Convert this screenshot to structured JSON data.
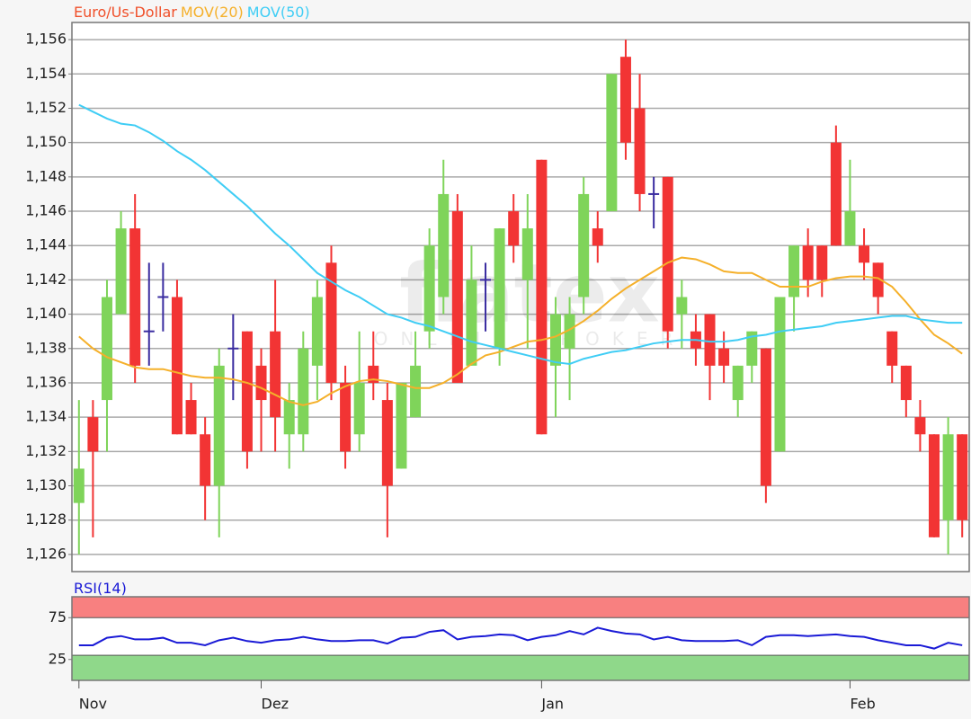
{
  "chart_data": [
    {
      "type": "candlestick",
      "series": [
        {
          "name": "Euro/Us-Dollar",
          "color": "#f0502a",
          "up_color": "#7fd45a",
          "down_color": "#f23434",
          "doji_color": "#3a2ca0",
          "open": [
            1.129,
            1.134,
            1.135,
            1.14,
            1.145,
            1.139,
            1.141,
            1.141,
            1.135,
            1.133,
            1.13,
            1.138,
            1.139,
            1.137,
            1.139,
            1.133,
            1.133,
            1.137,
            1.143,
            1.136,
            1.133,
            1.137,
            1.135,
            1.131,
            1.134,
            1.139,
            1.141,
            1.146,
            1.137,
            1.142,
            1.138,
            1.146,
            1.142,
            1.149,
            1.137,
            1.138,
            1.141,
            1.145,
            1.146,
            1.155,
            1.152,
            1.147,
            1.148,
            1.14,
            1.139,
            1.14,
            1.138,
            1.135,
            1.137,
            1.138,
            1.132,
            1.141,
            1.144,
            1.144,
            1.15,
            1.144,
            1.144,
            1.143,
            1.139,
            1.137,
            1.134,
            1.133,
            1.128,
            1.133
          ],
          "high": [
            1.135,
            1.135,
            1.142,
            1.146,
            1.147,
            1.143,
            1.143,
            1.142,
            1.136,
            1.134,
            1.138,
            1.14,
            1.139,
            1.138,
            1.142,
            1.136,
            1.139,
            1.142,
            1.144,
            1.137,
            1.139,
            1.139,
            1.136,
            1.136,
            1.139,
            1.145,
            1.149,
            1.147,
            1.144,
            1.143,
            1.145,
            1.147,
            1.147,
            1.149,
            1.141,
            1.141,
            1.148,
            1.146,
            1.154,
            1.156,
            1.154,
            1.148,
            1.148,
            1.142,
            1.14,
            1.14,
            1.139,
            1.137,
            1.139,
            1.138,
            1.141,
            1.144,
            1.145,
            1.144,
            1.151,
            1.149,
            1.145,
            1.143,
            1.139,
            1.137,
            1.135,
            1.133,
            1.134,
            1.133
          ],
          "low": [
            1.126,
            1.127,
            1.132,
            1.14,
            1.136,
            1.137,
            1.139,
            1.133,
            1.133,
            1.128,
            1.127,
            1.135,
            1.131,
            1.132,
            1.132,
            1.131,
            1.132,
            1.135,
            1.135,
            1.131,
            1.132,
            1.135,
            1.127,
            1.131,
            1.134,
            1.138,
            1.14,
            1.136,
            1.137,
            1.139,
            1.137,
            1.143,
            1.138,
            1.133,
            1.134,
            1.135,
            1.14,
            1.143,
            1.146,
            1.149,
            1.146,
            1.145,
            1.138,
            1.138,
            1.137,
            1.135,
            1.136,
            1.134,
            1.136,
            1.129,
            1.132,
            1.139,
            1.141,
            1.141,
            1.144,
            1.144,
            1.142,
            1.14,
            1.136,
            1.134,
            1.132,
            1.127,
            1.126,
            1.127
          ],
          "close": [
            1.131,
            1.132,
            1.141,
            1.145,
            1.137,
            1.139,
            1.141,
            1.133,
            1.133,
            1.13,
            1.137,
            1.138,
            1.132,
            1.135,
            1.134,
            1.135,
            1.138,
            1.141,
            1.136,
            1.132,
            1.136,
            1.136,
            1.13,
            1.136,
            1.137,
            1.144,
            1.147,
            1.136,
            1.142,
            1.142,
            1.145,
            1.144,
            1.145,
            1.133,
            1.14,
            1.14,
            1.147,
            1.144,
            1.154,
            1.15,
            1.147,
            1.147,
            1.139,
            1.141,
            1.138,
            1.137,
            1.137,
            1.137,
            1.139,
            1.13,
            1.141,
            1.144,
            1.142,
            1.142,
            1.144,
            1.146,
            1.143,
            1.141,
            1.137,
            1.135,
            1.133,
            1.127,
            1.133,
            1.128
          ]
        },
        {
          "name": "MOV(20)",
          "color": "#f5b02a",
          "values": [
            1.1387,
            1.138,
            1.1375,
            1.1372,
            1.1369,
            1.1368,
            1.1368,
            1.1366,
            1.1364,
            1.1363,
            1.1363,
            1.1362,
            1.136,
            1.1357,
            1.1353,
            1.1349,
            1.1347,
            1.1349,
            1.1354,
            1.1358,
            1.1361,
            1.1362,
            1.1361,
            1.1359,
            1.1357,
            1.1357,
            1.136,
            1.1365,
            1.1371,
            1.1376,
            1.1378,
            1.1381,
            1.1384,
            1.1385,
            1.1387,
            1.1391,
            1.1396,
            1.1402,
            1.1409,
            1.1415,
            1.142,
            1.1425,
            1.143,
            1.1433,
            1.1432,
            1.1429,
            1.1425,
            1.1424,
            1.1424,
            1.142,
            1.1416,
            1.1416,
            1.1416,
            1.1419,
            1.1421,
            1.1422,
            1.1422,
            1.1421,
            1.1416,
            1.1407,
            1.1397,
            1.1388,
            1.1383,
            1.1377
          ]
        },
        {
          "name": "MOV(50)",
          "color": "#3fcdf5",
          "values": [
            1.1522,
            1.1518,
            1.1514,
            1.1511,
            1.151,
            1.1506,
            1.1501,
            1.1495,
            1.149,
            1.1484,
            1.1477,
            1.147,
            1.1463,
            1.1455,
            1.1447,
            1.144,
            1.1432,
            1.1424,
            1.1419,
            1.1414,
            1.141,
            1.1405,
            1.14,
            1.1398,
            1.1395,
            1.1393,
            1.139,
            1.1387,
            1.1384,
            1.1382,
            1.138,
            1.1378,
            1.1376,
            1.1374,
            1.1372,
            1.1371,
            1.1374,
            1.1376,
            1.1378,
            1.1379,
            1.1381,
            1.1383,
            1.1384,
            1.1385,
            1.1385,
            1.1384,
            1.1384,
            1.1385,
            1.1387,
            1.1388,
            1.139,
            1.1391,
            1.1392,
            1.1393,
            1.1395,
            1.1396,
            1.1397,
            1.1398,
            1.1399,
            1.1399,
            1.1397,
            1.1396,
            1.1395,
            1.1395
          ]
        }
      ],
      "ylim": [
        1.125,
        1.157
      ],
      "yticks": [
        {
          "value": 1.126,
          "label": "1,126"
        },
        {
          "value": 1.128,
          "label": "1,128"
        },
        {
          "value": 1.13,
          "label": "1,130"
        },
        {
          "value": 1.132,
          "label": "1,132"
        },
        {
          "value": 1.134,
          "label": "1,134"
        },
        {
          "value": 1.136,
          "label": "1,136"
        },
        {
          "value": 1.138,
          "label": "1,138"
        },
        {
          "value": 1.14,
          "label": "1,140"
        },
        {
          "value": 1.142,
          "label": "1,142"
        },
        {
          "value": 1.144,
          "label": "1,144"
        },
        {
          "value": 1.146,
          "label": "1,146"
        },
        {
          "value": 1.148,
          "label": "1,148"
        },
        {
          "value": 1.15,
          "label": "1,150"
        },
        {
          "value": 1.152,
          "label": "1,152"
        },
        {
          "value": 1.154,
          "label": "1,154"
        },
        {
          "value": 1.156,
          "label": "1,156"
        }
      ],
      "grid": true,
      "watermark": [
        "flatex",
        "ONLINE BROKER"
      ]
    },
    {
      "type": "line",
      "series": [
        {
          "name": "RSI(14)",
          "color": "#1a1ad6",
          "values": [
            42,
            42,
            51,
            53,
            49,
            49,
            51,
            45,
            45,
            42,
            48,
            51,
            47,
            45,
            48,
            49,
            52,
            49,
            47,
            47,
            48,
            48,
            44,
            51,
            52,
            58,
            60,
            49,
            52,
            53,
            55,
            54,
            48,
            52,
            54,
            59,
            55,
            63,
            59,
            56,
            55,
            49,
            52,
            48,
            47,
            47,
            47,
            48,
            42,
            52,
            54,
            54,
            53,
            54,
            55,
            53,
            52,
            48,
            45,
            42,
            42,
            38,
            45,
            42
          ]
        }
      ],
      "categories": [
        "Nov",
        null,
        null,
        null,
        null,
        null,
        null,
        null,
        null,
        null,
        null,
        null,
        null,
        "Dez",
        null,
        null,
        null,
        null,
        null,
        null,
        null,
        null,
        null,
        null,
        null,
        null,
        null,
        null,
        null,
        null,
        null,
        null,
        null,
        "Jan",
        null,
        null,
        null,
        null,
        null,
        null,
        null,
        null,
        null,
        null,
        null,
        null,
        null,
        null,
        null,
        null,
        null,
        null,
        null,
        null,
        null,
        "Feb",
        null,
        null,
        null,
        null,
        null,
        null,
        null,
        null
      ],
      "ylim": [
        0,
        100
      ],
      "yticks": [
        25,
        75
      ],
      "bands": [
        {
          "from": 75,
          "to": 100,
          "color": "#f88080"
        },
        {
          "from": 0,
          "to": 30,
          "color": "#8fd88a"
        }
      ]
    }
  ]
}
